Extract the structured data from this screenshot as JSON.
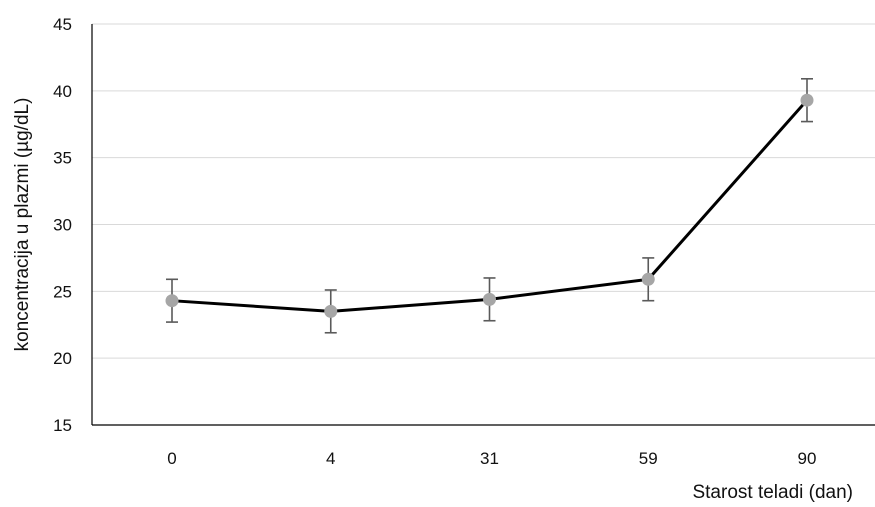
{
  "chart_data": {
    "type": "line",
    "title": "",
    "xlabel": "Starost teladi (dan)",
    "ylabel": "koncentracija u plazmi (µg/dL)",
    "categories": [
      "0",
      "4",
      "31",
      "59",
      "90"
    ],
    "series": [
      {
        "values": [
          24.3,
          23.5,
          24.4,
          25.9,
          39.3
        ],
        "error": [
          1.6,
          1.6,
          1.6,
          1.6,
          1.6
        ]
      }
    ],
    "ylim": [
      15,
      45
    ],
    "yticks": [
      "15",
      "20",
      "25",
      "30",
      "35",
      "40",
      "45"
    ],
    "grid": true,
    "legend": "none",
    "colors": {
      "line": "#000000",
      "marker": "#a6a6a6",
      "error_bar": "#5a5a5a",
      "grid": "#d9d9d9"
    }
  }
}
